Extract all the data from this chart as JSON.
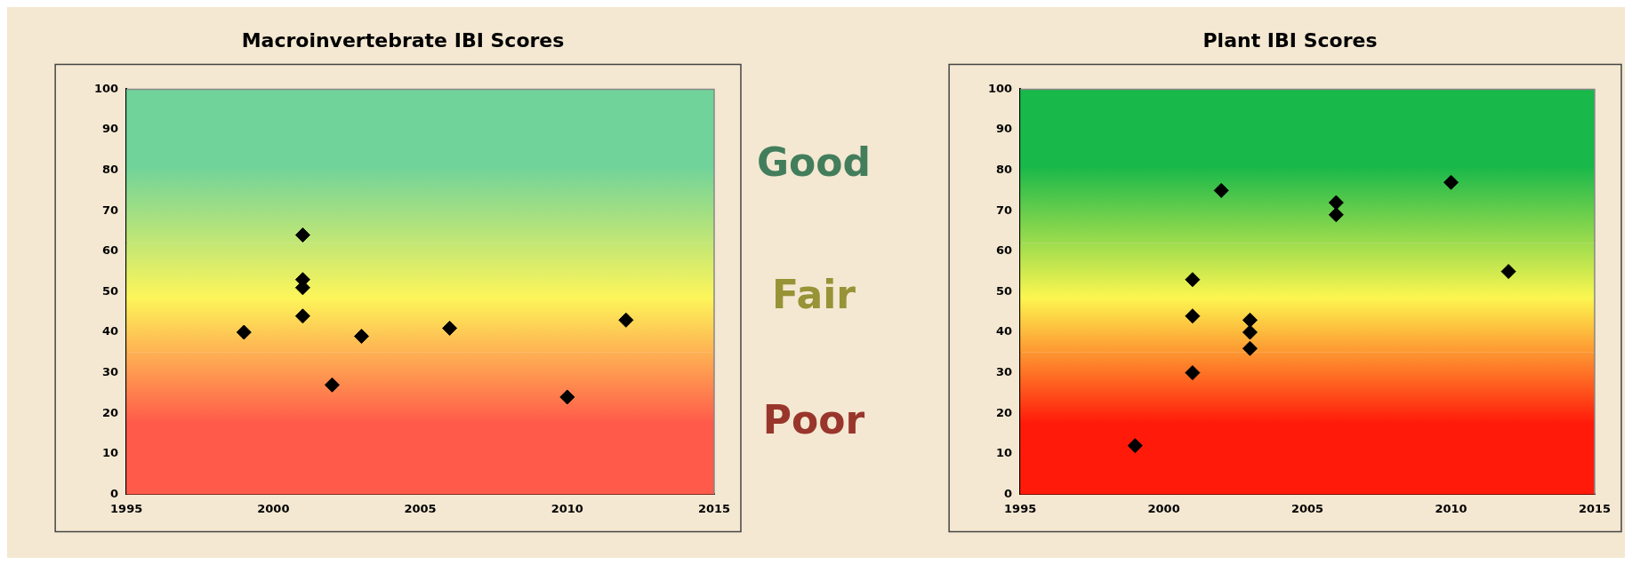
{
  "chart_data": [
    {
      "type": "scatter",
      "title": "Macroinvertebrate IBI Scores",
      "x": [
        1999,
        2001,
        2001,
        2001,
        2001,
        2002,
        2003,
        2006,
        2010,
        2012
      ],
      "series": [
        {
          "color": "#000000",
          "values": [
            40,
            64,
            53,
            51,
            44,
            27,
            39,
            41,
            24,
            43
          ]
        }
      ],
      "xlim": [
        1995,
        2015
      ],
      "xticks": [
        1995,
        2000,
        2005,
        2010,
        2015
      ],
      "ylim": [
        0,
        100
      ],
      "yticks": [
        0,
        10,
        20,
        30,
        40,
        50,
        60,
        70,
        80,
        90,
        100
      ],
      "marker": "diamond",
      "grid": false,
      "legend": false,
      "bands": [
        {
          "axis": "y",
          "from": 0,
          "to": 35,
          "label": "Poor",
          "color": "#ff5a4a"
        },
        {
          "axis": "y",
          "from": 35,
          "to": 62,
          "label": "Fair",
          "color": "#fdf55a"
        },
        {
          "axis": "y",
          "from": 62,
          "to": 100,
          "label": "Good",
          "color": "#70d39a"
        }
      ]
    },
    {
      "type": "scatter",
      "title": "Plant IBI Scores",
      "x": [
        1999,
        2001,
        2001,
        2001,
        2002,
        2003,
        2003,
        2003,
        2006,
        2006,
        2010,
        2012
      ],
      "series": [
        {
          "color": "#000000",
          "values": [
            12,
            53,
            44,
            30,
            75,
            43,
            40,
            36,
            72,
            69,
            77,
            55
          ]
        }
      ],
      "xlim": [
        1995,
        2015
      ],
      "xticks": [
        1995,
        2000,
        2005,
        2010,
        2015
      ],
      "ylim": [
        0,
        100
      ],
      "yticks": [
        0,
        10,
        20,
        30,
        40,
        50,
        60,
        70,
        80,
        90,
        100
      ],
      "marker": "diamond",
      "grid": false,
      "legend": false,
      "bands": [
        {
          "axis": "y",
          "from": 0,
          "to": 35,
          "color": "#ff1a0a"
        },
        {
          "axis": "y",
          "from": 35,
          "to": 62,
          "color": "#fcf650"
        },
        {
          "axis": "y",
          "from": 62,
          "to": 100,
          "color": "#18b84a"
        }
      ]
    }
  ]
}
